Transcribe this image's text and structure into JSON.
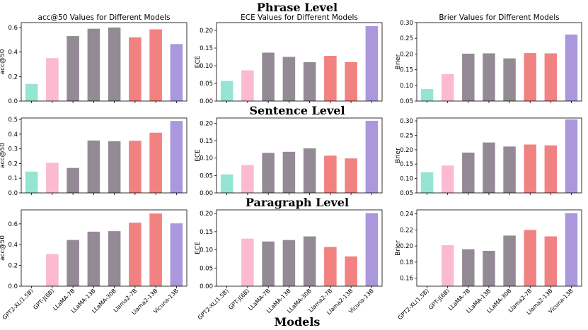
{
  "figure": {
    "row_titles": [
      "Phrase Level",
      "Sentence Level",
      "Paragraph Level"
    ],
    "xlabel": "Models"
  },
  "chart_data": [
    {
      "type": "bar",
      "row": 0,
      "col": 0,
      "title": "acc@50 Values for Different Models",
      "ylabel": "acc@50",
      "ylim": [
        0,
        0.64
      ],
      "yticks": [
        "0.0",
        "0.2",
        "0.4",
        "0.6"
      ],
      "categories": [
        "GPT2-XL(1.5B)",
        "GPT-J(6B)",
        "LLaMA-7B",
        "LLaMA-13B",
        "LLaMA-30B",
        "Llama2-7B",
        "Llama2-13B",
        "Vicuna-13B"
      ],
      "values": [
        0.14,
        0.35,
        0.53,
        0.59,
        0.6,
        0.52,
        0.585,
        0.465
      ],
      "show_xticklabels": false
    },
    {
      "type": "bar",
      "row": 0,
      "col": 1,
      "title": "ECE Values for Different Models",
      "ylabel": "ECE",
      "ylim": [
        0,
        0.222
      ],
      "yticks": [
        "0.00",
        "0.05",
        "0.10",
        "0.15",
        "0.20"
      ],
      "categories": [
        "GPT2-XL(1.5B)",
        "GPT-J(6B)",
        "LLaMA-7B",
        "LLaMA-13B",
        "LLaMA-30B",
        "Llama2-7B",
        "Llama2-13B",
        "Vicuna-13B"
      ],
      "values": [
        0.057,
        0.087,
        0.137,
        0.125,
        0.11,
        0.128,
        0.11,
        0.212
      ],
      "show_xticklabels": false
    },
    {
      "type": "bar",
      "row": 0,
      "col": 2,
      "title": "Brier Values for Different Models",
      "ylabel": "Brier",
      "ylim": [
        0.05,
        0.3
      ],
      "yticks": [
        "0.05",
        "0.10",
        "0.15",
        "0.20",
        "0.25",
        "0.30"
      ],
      "categories": [
        "GPT2-XL(1.5B)",
        "GPT-J(6B)",
        "LLaMA-7B",
        "LLaMA-13B",
        "LLaMA-30B",
        "Llama2-7B",
        "Llama2-13B",
        "Vicuna-13B"
      ],
      "values": [
        0.088,
        0.136,
        0.201,
        0.202,
        0.186,
        0.203,
        0.202,
        0.262
      ],
      "show_xticklabels": false
    },
    {
      "type": "bar",
      "row": 1,
      "col": 0,
      "title": "",
      "ylabel": "acc@50",
      "ylim": [
        0,
        0.51
      ],
      "yticks": [
        "0.0",
        "0.1",
        "0.2",
        "0.3",
        "0.4",
        "0.5"
      ],
      "categories": [
        "GPT2-XL(1.5B)",
        "GPT-J(6B)",
        "LLaMA-7B",
        "LLaMA-13B",
        "LLaMA-30B",
        "Llama2-7B",
        "Llama2-13B",
        "Vicuna-13B"
      ],
      "values": [
        0.145,
        0.205,
        0.17,
        0.357,
        0.352,
        0.355,
        0.41,
        0.49
      ],
      "show_xticklabels": false
    },
    {
      "type": "bar",
      "row": 1,
      "col": 1,
      "title": "",
      "ylabel": "ECE",
      "ylim": [
        0,
        0.215
      ],
      "yticks": [
        "0.00",
        "0.05",
        "0.10",
        "0.15",
        "0.20"
      ],
      "categories": [
        "GPT2-XL(1.5B)",
        "GPT-J(6B)",
        "LLaMA-7B",
        "LLaMA-13B",
        "LLaMA-30B",
        "Llama2-7B",
        "Llama2-13B",
        "Vicuna-13B"
      ],
      "values": [
        0.053,
        0.08,
        0.115,
        0.118,
        0.128,
        0.107,
        0.099,
        0.207
      ],
      "show_xticklabels": false
    },
    {
      "type": "bar",
      "row": 1,
      "col": 2,
      "title": "",
      "ylabel": "Brier",
      "ylim": [
        0.05,
        0.31
      ],
      "yticks": [
        "0.05",
        "0.10",
        "0.15",
        "0.20",
        "0.25",
        "0.30"
      ],
      "categories": [
        "GPT2-XL(1.5B)",
        "GPT-J(6B)",
        "LLaMA-7B",
        "LLaMA-13B",
        "LLaMA-30B",
        "Llama2-7B",
        "Llama2-13B",
        "Vicuna-13B"
      ],
      "values": [
        0.122,
        0.145,
        0.19,
        0.225,
        0.211,
        0.218,
        0.215,
        0.305
      ],
      "show_xticklabels": false
    },
    {
      "type": "bar",
      "row": 2,
      "col": 0,
      "title": "",
      "ylabel": "acc@50",
      "ylim": [
        0,
        0.735
      ],
      "yticks": [
        "0.0",
        "0.2",
        "0.4",
        "0.6"
      ],
      "categories": [
        "GPT2-XL(1.5B)",
        "GPT-J(6B)",
        "LLaMA-7B",
        "LLaMA-13B",
        "LLaMA-30B",
        "Llama2-7B",
        "Llama2-13B",
        "Vicuna-13B"
      ],
      "values": [
        0,
        0.31,
        0.445,
        0.525,
        0.53,
        0.612,
        0.7,
        0.605
      ],
      "show_xticklabels": true
    },
    {
      "type": "bar",
      "row": 2,
      "col": 1,
      "title": "",
      "ylabel": "ECE",
      "ylim": [
        0,
        0.21
      ],
      "yticks": [
        "0.00",
        "0.05",
        "0.10",
        "0.15",
        "0.20"
      ],
      "categories": [
        "GPT2-XL(1.5B)",
        "GPT-J(6B)",
        "LLaMA-7B",
        "LLaMA-13B",
        "LLaMA-30B",
        "Llama2-7B",
        "Llama2-13B",
        "Vicuna-13B"
      ],
      "values": [
        0,
        0.131,
        0.123,
        0.127,
        0.137,
        0.108,
        0.082,
        0.201
      ],
      "show_xticklabels": true
    },
    {
      "type": "bar",
      "row": 2,
      "col": 2,
      "title": "",
      "ylabel": "Brier",
      "ylim": [
        0.15,
        0.245
      ],
      "yticks": [
        "0.16",
        "0.18",
        "0.20",
        "0.22",
        "0.24"
      ],
      "categories": [
        "GPT2-XL(1.5B)",
        "GPT-J(6B)",
        "LLaMA-7B",
        "LLaMA-13B",
        "LLaMA-30B",
        "Llama2-7B",
        "Llama2-13B",
        "Vicuna-13B"
      ],
      "values": [
        0.15,
        0.201,
        0.196,
        0.194,
        0.213,
        0.22,
        0.212,
        0.241
      ],
      "show_xticklabels": true
    }
  ],
  "colors": [
    "#96e4d3",
    "#fbb9d2",
    "#938a95",
    "#938a95",
    "#938a95",
    "#f28181",
    "#f28181",
    "#ab98dc"
  ]
}
